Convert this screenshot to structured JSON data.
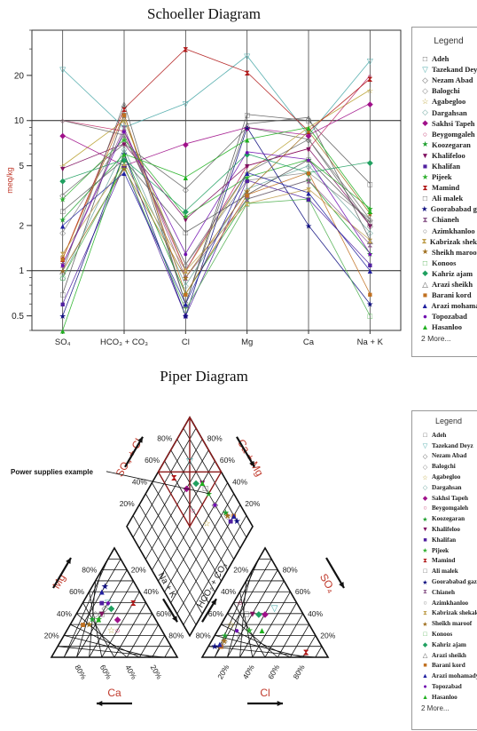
{
  "chart_data": [
    {
      "type": "line",
      "title": "Schoeller Diagram",
      "ylabel": "meq/kg",
      "yscale": "log",
      "ylim": [
        0.4,
        40
      ],
      "yticks": [
        "0.5",
        "1",
        "2",
        "5",
        "10",
        "20"
      ],
      "categories": [
        "SO₄",
        "HCO₃ + CO₃",
        "Cl",
        "Mg",
        "Ca",
        "Na + K"
      ],
      "series": [
        {
          "name": "Adeh",
          "color": "#555555",
          "marker": "□",
          "values": [
            0.7,
            11,
            0.6,
            11,
            10,
            3.8
          ]
        },
        {
          "name": "Tazekand Deyz",
          "color": "#4aa8a8",
          "marker": "▽",
          "values": [
            22,
            9,
            13,
            27,
            8,
            25
          ]
        },
        {
          "name": "Nezam Abad",
          "color": "#666666",
          "marker": "◇",
          "values": [
            3.2,
            7,
            3.5,
            9,
            7.5,
            2
          ]
        },
        {
          "name": "Balogchi",
          "color": "#888888",
          "marker": "◇",
          "values": [
            1.8,
            8,
            1.1,
            4,
            4.5,
            2.2
          ]
        },
        {
          "name": "Agabegloo",
          "color": "#b8a030",
          "marker": "☆",
          "values": [
            5,
            10,
            1,
            4.5,
            9,
            16
          ]
        },
        {
          "name": "Dargahsan",
          "color": "#70a8a0",
          "marker": "◇",
          "values": [
            0.9,
            6.5,
            0.8,
            3.5,
            5,
            1.8
          ]
        },
        {
          "name": "Sakhsi Tapeh",
          "color": "#a0108a",
          "marker": "◆",
          "values": [
            8,
            5,
            7,
            9,
            8,
            13
          ]
        },
        {
          "name": "Beygomgaleh",
          "color": "#c0306a",
          "marker": "○",
          "values": [
            10,
            8.5,
            1,
            5,
            6.5,
            20
          ]
        },
        {
          "name": "Koozegaran",
          "color": "#20a030",
          "marker": "★",
          "values": [
            2.2,
            6,
            0.7,
            3,
            4,
            1.3
          ]
        },
        {
          "name": "Khalifeloo",
          "color": "#801060",
          "marker": "▼",
          "values": [
            4.8,
            7,
            2.2,
            5,
            6.5,
            2
          ]
        },
        {
          "name": "Khalifan",
          "color": "#5020a0",
          "marker": "■",
          "values": [
            0.6,
            5,
            0.5,
            4,
            3,
            1.1
          ]
        },
        {
          "name": "Pijeek",
          "color": "#30b030",
          "marker": "★",
          "values": [
            3,
            7.5,
            2.3,
            4.2,
            5.5,
            2.6
          ]
        },
        {
          "name": "Mamind",
          "color": "#b01818",
          "marker": "⧗",
          "values": [
            1.2,
            12,
            30,
            21,
            8.5,
            19
          ]
        },
        {
          "name": "Ali malek",
          "color": "#555555",
          "marker": "□",
          "values": [
            2.5,
            5.5,
            1.8,
            3.2,
            5.5,
            2.1
          ]
        },
        {
          "name": "Goorababad gazagi",
          "color": "#101080",
          "marker": "★",
          "values": [
            0.5,
            6,
            0.5,
            9,
            2,
            0.6
          ]
        },
        {
          "name": "Chianeh",
          "color": "#906090",
          "marker": "⧗",
          "values": [
            1.1,
            9,
            0.9,
            3,
            4,
            1.5
          ]
        },
        {
          "name": "Azimkhanloo",
          "color": "#707070",
          "marker": "○",
          "values": [
            10,
            8,
            1.1,
            4.5,
            7.5,
            2.2
          ]
        },
        {
          "name": "Kabrizak shekak",
          "color": "#c0a050",
          "marker": "⧗",
          "values": [
            1.3,
            5.2,
            1,
            2.8,
            3.5,
            1.6
          ]
        },
        {
          "name": "Sheikh maroof",
          "color": "#a07020",
          "marker": "★",
          "values": [
            1,
            4.8,
            0.9,
            3.4,
            8.5,
            2.4
          ]
        },
        {
          "name": "Konoos",
          "color": "#50b050",
          "marker": "□",
          "values": [
            0.9,
            5,
            0.55,
            2.8,
            3,
            0.5
          ]
        },
        {
          "name": "Kahriz ajam",
          "color": "#20a060",
          "marker": "◆",
          "values": [
            4,
            5.5,
            2.5,
            6,
            4.5,
            5.3
          ]
        },
        {
          "name": "Arazi sheikh",
          "color": "#606060",
          "marker": "△",
          "values": [
            1,
            13,
            0.6,
            9.5,
            10.5,
            1.6
          ]
        },
        {
          "name": "Barani kord",
          "color": "#c07020",
          "marker": "■",
          "values": [
            1.2,
            11,
            0.7,
            3.2,
            4.5,
            0.7
          ]
        },
        {
          "name": "Arazi mohamadyar",
          "color": "#2020a0",
          "marker": "▲",
          "values": [
            2,
            4.5,
            0.6,
            4.5,
            3.3,
            1
          ]
        },
        {
          "name": "Topozabad",
          "color": "#7010b0",
          "marker": "●",
          "values": [
            1.1,
            8.5,
            1.3,
            6.2,
            5.5,
            1.3
          ]
        },
        {
          "name": "Hasanloo",
          "color": "#20b020",
          "marker": "▲",
          "values": [
            0.4,
            6,
            4.2,
            7.5,
            9,
            2.5
          ]
        }
      ],
      "legend_title": "Legend",
      "legend_more": "2 More..."
    },
    {
      "type": "scatter",
      "title": "Piper Diagram",
      "left_triangle": {
        "bottom_label": "Ca",
        "side_label": "Mg",
        "ticks": [
          "20%",
          "40%",
          "60%",
          "80%"
        ]
      },
      "right_triangle": {
        "bottom_label": "Cl",
        "side_label": "SO₄",
        "ticks": [
          "20%",
          "40%",
          "60%",
          "80%"
        ]
      },
      "diamond": {
        "labels": [
          "SO₄ + Cl",
          "Ca + Mg",
          "Na + K",
          "HCO₃ + CO₃"
        ],
        "ticks": [
          "20%",
          "40%",
          "60%",
          "80%"
        ]
      },
      "annotation": "Power supplies example",
      "legend_title": "Legend",
      "legend_more": "2 More...",
      "series": [
        {
          "name": "Adeh",
          "color": "#555555",
          "marker": "□"
        },
        {
          "name": "Tazekand Deyz",
          "color": "#4aa8a8",
          "marker": "▽"
        },
        {
          "name": "Nezam Abad",
          "color": "#666666",
          "marker": "◇"
        },
        {
          "name": "Balogchi",
          "color": "#888888",
          "marker": "◇"
        },
        {
          "name": "Agabegloo",
          "color": "#b8a030",
          "marker": "☆"
        },
        {
          "name": "Dargahsan",
          "color": "#70a8a0",
          "marker": "◇"
        },
        {
          "name": "Sakhsi Tapeh",
          "color": "#a0108a",
          "marker": "◆"
        },
        {
          "name": "Beygomgaleh",
          "color": "#c0306a",
          "marker": "○"
        },
        {
          "name": "Koozegaran",
          "color": "#20a030",
          "marker": "★"
        },
        {
          "name": "Khalifeloo",
          "color": "#801060",
          "marker": "▼"
        },
        {
          "name": "Khalifan",
          "color": "#5020a0",
          "marker": "■"
        },
        {
          "name": "Pijeek",
          "color": "#30b030",
          "marker": "★"
        },
        {
          "name": "Mamind",
          "color": "#b01818",
          "marker": "⧗"
        },
        {
          "name": "Ali malek",
          "color": "#555555",
          "marker": "□"
        },
        {
          "name": "Goorababad gazagi",
          "color": "#101080",
          "marker": "★"
        },
        {
          "name": "Chianeh",
          "color": "#906090",
          "marker": "⧗"
        },
        {
          "name": "Azimkhanloo",
          "color": "#707070",
          "marker": "○"
        },
        {
          "name": "Kabrizak shekak",
          "color": "#c0a050",
          "marker": "⧗"
        },
        {
          "name": "Sheikh maroof",
          "color": "#a07020",
          "marker": "★"
        },
        {
          "name": "Konoos",
          "color": "#50b050",
          "marker": "□"
        },
        {
          "name": "Kahriz ajam",
          "color": "#20a060",
          "marker": "◆"
        },
        {
          "name": "Arazi sheikh",
          "color": "#606060",
          "marker": "△"
        },
        {
          "name": "Barani kord",
          "color": "#c07020",
          "marker": "■"
        },
        {
          "name": "Arazi mohamadyar",
          "color": "#2020a0",
          "marker": "▲"
        },
        {
          "name": "Topozabad",
          "color": "#7010b0",
          "marker": "●"
        },
        {
          "name": "Hasanloo",
          "color": "#20b020",
          "marker": "▲"
        }
      ],
      "samples": [
        {
          "series": "Adeh",
          "ca": 40,
          "mg": 40,
          "na": 20,
          "cl": 15,
          "so4": 40,
          "hco3": 45
        },
        {
          "series": "Tazekand Deyz",
          "ca": 30,
          "mg": 50,
          "na": 20,
          "cl": 35,
          "so4": 45,
          "hco3": 20
        },
        {
          "series": "Nezam Abad",
          "ca": 35,
          "mg": 45,
          "na": 20,
          "cl": 20,
          "so4": 20,
          "hco3": 60
        },
        {
          "series": "Balogchi",
          "ca": 45,
          "mg": 40,
          "na": 15,
          "cl": 10,
          "so4": 15,
          "hco3": 75
        },
        {
          "series": "Agabegloo",
          "ca": 40,
          "mg": 25,
          "na": 35,
          "cl": 8,
          "so4": 30,
          "hco3": 62
        },
        {
          "series": "Sakhsi Tapeh",
          "ca": 30,
          "mg": 35,
          "na": 35,
          "cl": 30,
          "so4": 40,
          "hco3": 30
        },
        {
          "series": "Beygomgaleh",
          "ca": 35,
          "mg": 25,
          "na": 40,
          "cl": 5,
          "so4": 50,
          "hco3": 45
        },
        {
          "series": "Koozegaran",
          "ca": 50,
          "mg": 35,
          "na": 15,
          "cl": 8,
          "so4": 20,
          "hco3": 72
        },
        {
          "series": "Khalifeloo",
          "ca": 40,
          "mg": 40,
          "na": 20,
          "cl": 20,
          "so4": 40,
          "hco3": 40
        },
        {
          "series": "Khalifan",
          "ca": 35,
          "mg": 50,
          "na": 15,
          "cl": 10,
          "so4": 10,
          "hco3": 80
        },
        {
          "series": "Pijeek",
          "ca": 45,
          "mg": 35,
          "na": 20,
          "cl": 25,
          "so4": 25,
          "hco3": 50
        },
        {
          "series": "Mamind",
          "ca": 10,
          "mg": 50,
          "na": 40,
          "cl": 80,
          "so4": 5,
          "hco3": 15
        },
        {
          "series": "Goorababad gazagi",
          "ca": 25,
          "mg": 65,
          "na": 10,
          "cl": 5,
          "so4": 10,
          "hco3": 85
        },
        {
          "series": "Sheikh maroof",
          "ca": 55,
          "mg": 30,
          "na": 15,
          "cl": 10,
          "so4": 15,
          "hco3": 75
        },
        {
          "series": "Kahriz ajam",
          "ca": 30,
          "mg": 45,
          "na": 25,
          "cl": 25,
          "so4": 40,
          "hco3": 35
        },
        {
          "series": "Barani kord",
          "ca": 60,
          "mg": 30,
          "na": 10,
          "cl": 10,
          "so4": 10,
          "hco3": 80
        },
        {
          "series": "Arazi mohamadyar",
          "ca": 30,
          "mg": 60,
          "na": 10,
          "cl": 8,
          "so4": 12,
          "hco3": 80
        },
        {
          "series": "Topozabad",
          "ca": 30,
          "mg": 50,
          "na": 20,
          "cl": 15,
          "so4": 25,
          "hco3": 60
        },
        {
          "series": "Hasanloo",
          "ca": 45,
          "mg": 35,
          "na": 20,
          "cl": 35,
          "so4": 25,
          "hco3": 40
        }
      ]
    }
  ]
}
